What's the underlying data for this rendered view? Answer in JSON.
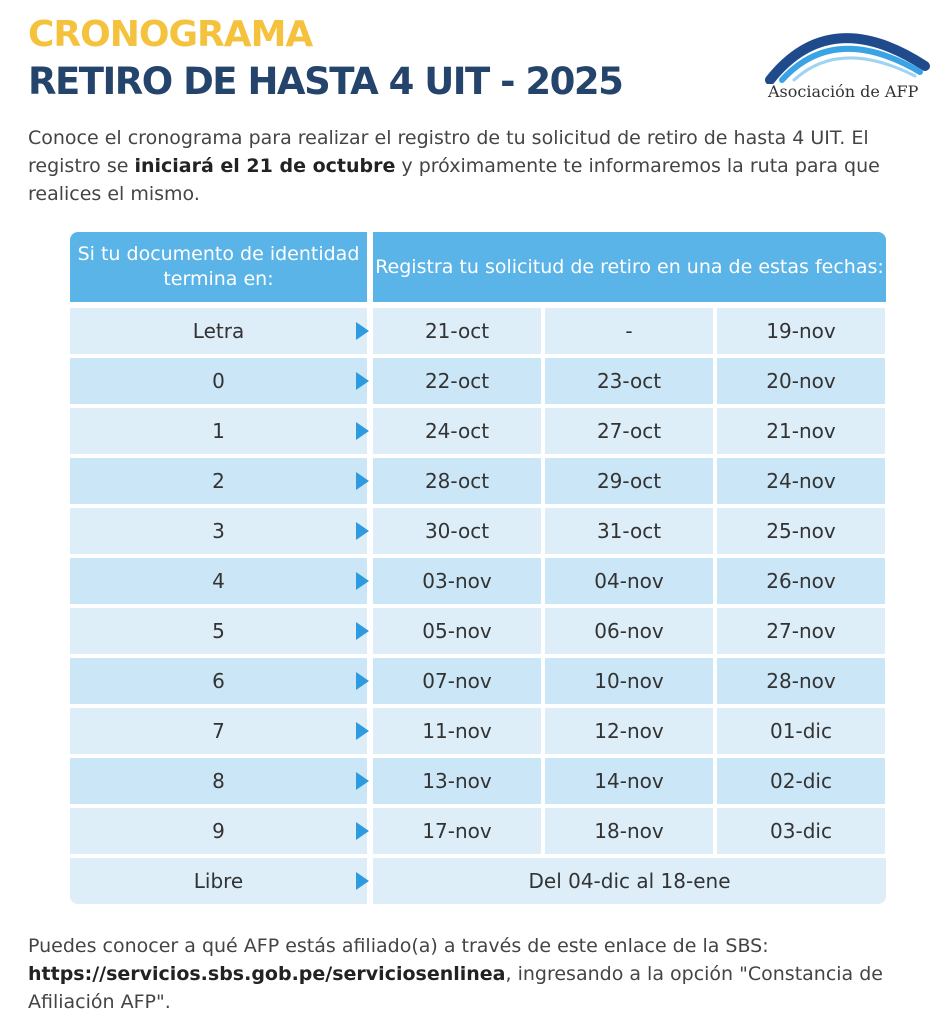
{
  "header": {
    "title_top": "CRONOGRAMA",
    "title_main": "RETIRO DE HASTA 4 UIT - 2025"
  },
  "logo": {
    "name": "Asociación de AFP",
    "colors": {
      "arc_dark": "#1f4b8c",
      "arc_light": "#3aa3e3"
    }
  },
  "intro": {
    "part1": "Conoce el cronograma para realizar el registro de tu solicitud de retiro de hasta 4 UIT. El registro se ",
    "bold": "iniciará el 21 de octubre",
    "part2": " y próximamente te informaremos la ruta para que realices el mismo."
  },
  "table": {
    "header_left": "Si tu documento de identidad termina en:",
    "header_right": "Registra tu solicitud de retiro en una de estas fechas:",
    "rows": [
      {
        "label": "Letra",
        "dates": [
          "21-oct",
          "-",
          "19-nov"
        ]
      },
      {
        "label": "0",
        "dates": [
          "22-oct",
          "23-oct",
          "20-nov"
        ]
      },
      {
        "label": "1",
        "dates": [
          "24-oct",
          "27-oct",
          "21-nov"
        ]
      },
      {
        "label": "2",
        "dates": [
          "28-oct",
          "29-oct",
          "24-nov"
        ]
      },
      {
        "label": "3",
        "dates": [
          "30-oct",
          "31-oct",
          "25-nov"
        ]
      },
      {
        "label": "4",
        "dates": [
          "03-nov",
          "04-nov",
          "26-nov"
        ]
      },
      {
        "label": "5",
        "dates": [
          "05-nov",
          "06-nov",
          "27-nov"
        ]
      },
      {
        "label": "6",
        "dates": [
          "07-nov",
          "10-nov",
          "28-nov"
        ]
      },
      {
        "label": "7",
        "dates": [
          "11-nov",
          "12-nov",
          "01-dic"
        ]
      },
      {
        "label": "8",
        "dates": [
          "13-nov",
          "14-nov",
          "02-dic"
        ]
      },
      {
        "label": "9",
        "dates": [
          "17-nov",
          "18-nov",
          "03-dic"
        ]
      }
    ],
    "libre": {
      "label": "Libre",
      "range": "Del 04-dic al 18-ene"
    },
    "colors": {
      "header_bg": "#5ab4e8",
      "row_light": "#ddeef9",
      "row_dark": "#cbe6f6",
      "arrow": "#2e9be0"
    }
  },
  "footer": {
    "part1": "Puedes conocer a qué AFP estás afiliado(a) a través de este enlace de la SBS: ",
    "link": "https://servicios.sbs.gob.pe/serviciosenlinea",
    "part2": ", ingresando a la opción \"Constancia de Afiliación AFP\"."
  },
  "colors": {
    "title_yellow": "#f5c23d",
    "title_navy": "#25446b"
  }
}
